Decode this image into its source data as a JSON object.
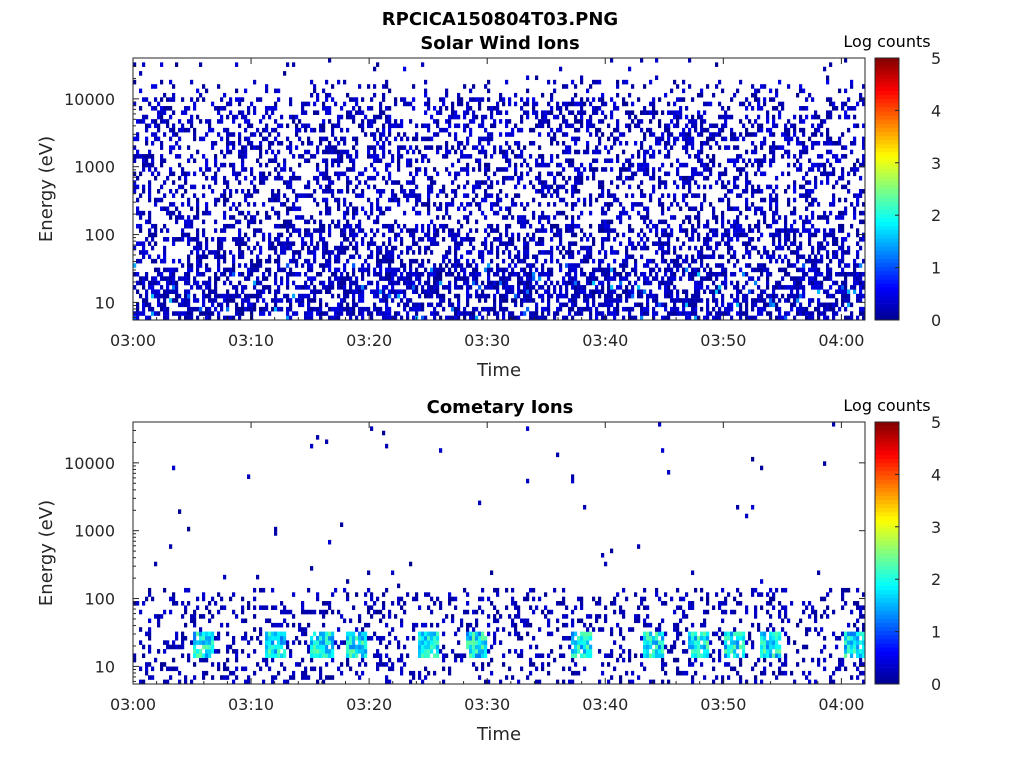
{
  "figure": {
    "title": "RPCICA150804T03.PNG"
  },
  "colormap": {
    "name": "jet",
    "stops": [
      "#00008f",
      "#0000ff",
      "#0080ff",
      "#00ffff",
      "#80ff80",
      "#ffff00",
      "#ff8000",
      "#ff0000",
      "#800000"
    ]
  },
  "chart_data": [
    {
      "type": "heatmap",
      "title": "Solar Wind Ions",
      "xlabel": "Time",
      "ylabel": "Energy (eV)",
      "xticks": [
        "03:00",
        "03:10",
        "03:20",
        "03:30",
        "03:40",
        "03:50",
        "04:00"
      ],
      "xlim_minutes": [
        0,
        62
      ],
      "yticks": [
        {
          "value": 10,
          "label": "10"
        },
        {
          "value": 100,
          "label": "100"
        },
        {
          "value": 1000,
          "label": "1000"
        },
        {
          "value": 10000,
          "label": "10000"
        }
      ],
      "yscale": "log",
      "ylim": [
        5.5,
        40000
      ],
      "colorbar": {
        "title": "Log counts",
        "ticks": [
          "0",
          "1",
          "2",
          "3",
          "4",
          "5"
        ],
        "range": [
          0,
          5
        ]
      },
      "description_of_values": "Dense sparse counts (log counts 0-1) across all energies 10 eV-30 keV for entire interval; densest below ~100 eV with occasional values up to ~1.5 near 20-30 eV.",
      "pattern": "solar_wind"
    },
    {
      "type": "heatmap",
      "title": "Cometary Ions",
      "xlabel": "Time",
      "ylabel": "Energy (eV)",
      "xticks": [
        "03:00",
        "03:10",
        "03:20",
        "03:30",
        "03:40",
        "03:50",
        "04:00"
      ],
      "xlim_minutes": [
        0,
        62
      ],
      "yticks": [
        {
          "value": 10,
          "label": "10"
        },
        {
          "value": 100,
          "label": "100"
        },
        {
          "value": 1000,
          "label": "1000"
        },
        {
          "value": 10000,
          "label": "10000"
        }
      ],
      "yscale": "log",
      "ylim": [
        5.5,
        40000
      ],
      "colorbar": {
        "title": "Log counts",
        "ticks": [
          "0",
          "1",
          "2",
          "3",
          "4",
          "5"
        ],
        "range": [
          0,
          5
        ]
      },
      "description_of_values": "Counts mostly below ~150 eV; periodic enhancements near 15-30 eV reaching log counts ~2-2.5 at roughly 03:06, 03:12, 03:16, 03:19, 03:25, 03:29, 03:38, 03:44, 03:48, 03:51, 03:54, 04:01; sparse isolated counts at higher energies.",
      "bursts_minutes": [
        6,
        12,
        16,
        19,
        25,
        29,
        38,
        44,
        48,
        51,
        54,
        61
      ],
      "pattern": "cometary"
    }
  ]
}
